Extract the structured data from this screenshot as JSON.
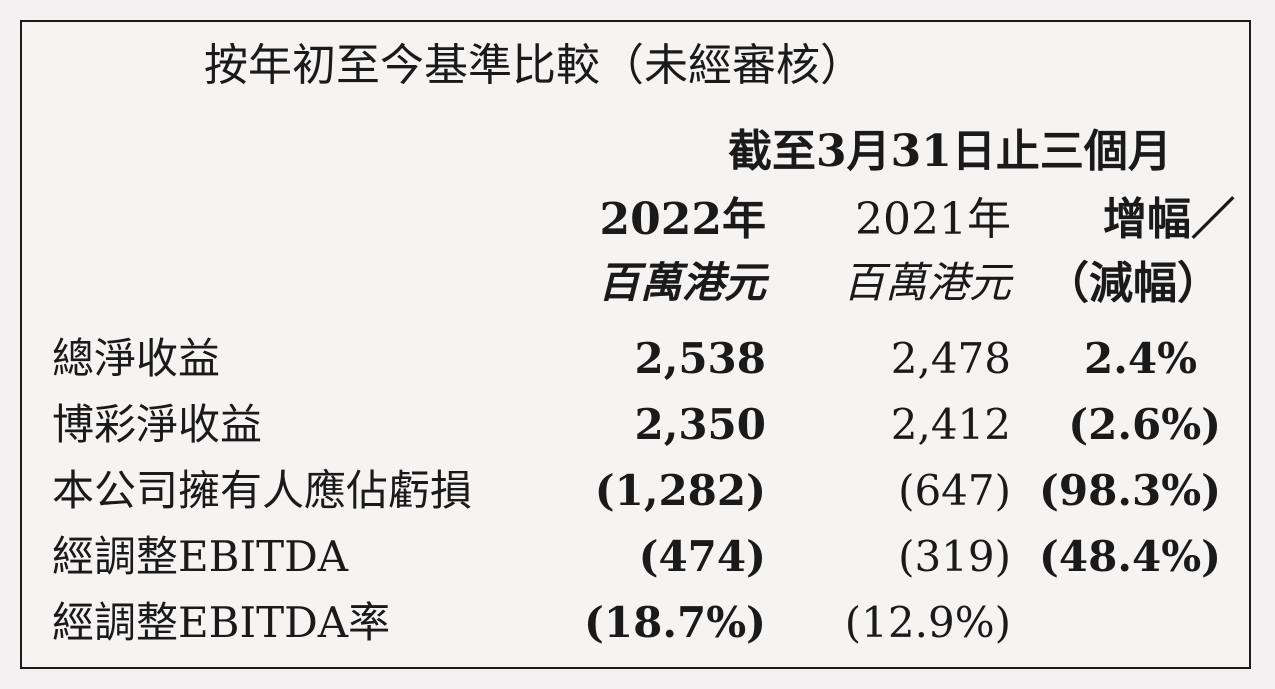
{
  "title": "按年初至今基準比較（未經審核）",
  "period": "截至3月31日止三個月",
  "columns": {
    "y2022": {
      "year": "2022年",
      "unit": "百萬港元"
    },
    "y2021": {
      "year": "2021年",
      "unit": "百萬港元"
    },
    "change": {
      "line1": "增幅／",
      "line2": "（減幅）"
    }
  },
  "rows": [
    {
      "label": "總淨收益",
      "y2022": "2,538",
      "y2021": "2,478",
      "change": "2.4%"
    },
    {
      "label": "博彩淨收益",
      "y2022": "2,350",
      "y2021": "2,412",
      "change": "(2.6%)"
    },
    {
      "label": "本公司擁有人應佔虧損",
      "y2022": "(1,282)",
      "y2021": "(647)",
      "change": "(98.3%)"
    },
    {
      "label": "經調整EBITDA",
      "y2022": "(474)",
      "y2021": "(319)",
      "change": "(48.4%)"
    },
    {
      "label": "經調整EBITDA率",
      "y2022": "(18.7%)",
      "y2021": "(12.9%)",
      "change": ""
    }
  ]
}
